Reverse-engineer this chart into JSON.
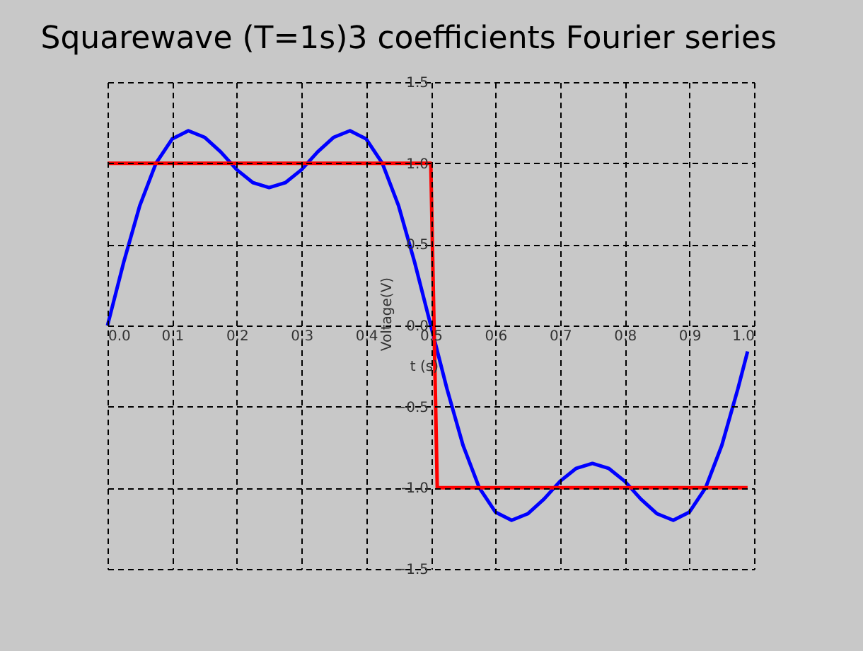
{
  "chart_data": {
    "type": "line",
    "title": "Squarewave (T=1s)3 coefficients Fourier series",
    "xlabel": "t (s)",
    "ylabel": "Voltage(V)",
    "series": [
      {
        "color": "#0000ff",
        "x": [
          0,
          0.025,
          0.05,
          0.075,
          0.1,
          0.125,
          0.15,
          0.175,
          0.2,
          0.225,
          0.25,
          0.275,
          0.3,
          0.325,
          0.35,
          0.375,
          0.4,
          0.425,
          0.45,
          0.475,
          0.5,
          0.525,
          0.55,
          0.575,
          0.6,
          0.625,
          0.65,
          0.675,
          0.7,
          0.725,
          0.75,
          0.775,
          0.8,
          0.825,
          0.85,
          0.875,
          0.9,
          0.925,
          0.95,
          0.975,
          0.99
        ],
        "values": [
          0,
          0.39,
          0.74,
          1.0,
          1.15,
          1.2,
          1.16,
          1.07,
          0.96,
          0.88,
          0.85,
          0.88,
          0.96,
          1.07,
          1.16,
          1.2,
          1.15,
          1.0,
          0.74,
          0.39,
          0,
          -0.39,
          -0.74,
          -1.0,
          -1.15,
          -1.2,
          -1.16,
          -1.07,
          -0.96,
          -0.88,
          -0.85,
          -0.88,
          -0.96,
          -1.07,
          -1.16,
          -1.2,
          -1.15,
          -1.0,
          -0.74,
          -0.39,
          -0.16
        ]
      },
      {
        "color": "#ff0000",
        "x": [
          0,
          0.5,
          0.51,
          0.99
        ],
        "values": [
          1,
          1,
          -1,
          -1
        ]
      }
    ],
    "xlim": [
      0,
      1
    ],
    "ylim": [
      -1.5,
      1.5
    ],
    "xticks": [
      {
        "value": 0,
        "label": "0.0"
      },
      0.1,
      0.2,
      0.3,
      0.4,
      0.5,
      0.6,
      0.7,
      0.8,
      0.9,
      {
        "value": 1,
        "label": "1.0"
      }
    ],
    "yticks": [
      -1.5,
      {
        "value": -1,
        "label": "-1.0"
      },
      -0.5,
      {
        "value": 0,
        "label": "0.0"
      },
      0.5,
      {
        "value": 1,
        "label": "1.0"
      },
      1.5
    ],
    "grid": true,
    "marker": "none",
    "line_style": "solid"
  }
}
